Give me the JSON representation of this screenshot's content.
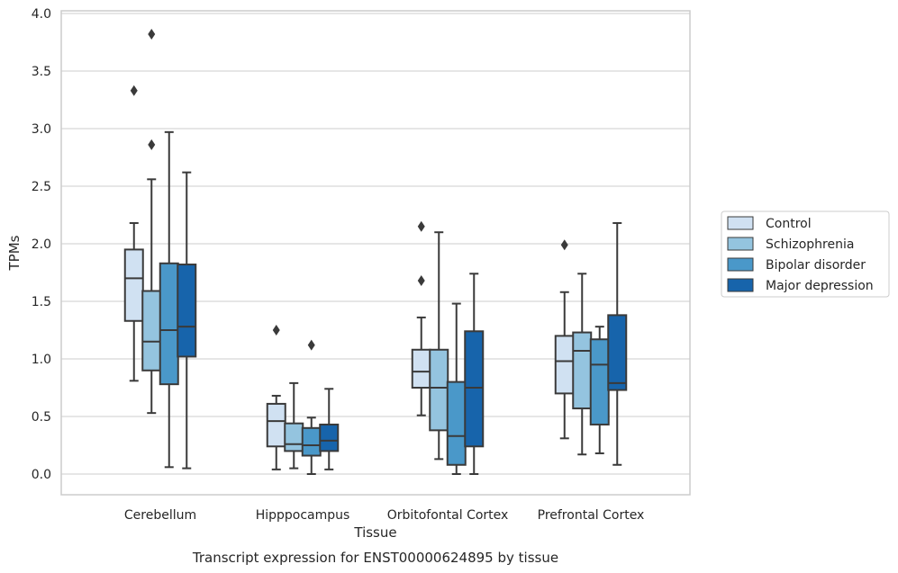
{
  "caption": "Transcript expression for ENST00000624895 by tissue",
  "chart_data": {
    "type": "box",
    "xlabel": "Tissue",
    "ylabel": "TPMs",
    "ylim": [
      -0.18,
      4.03
    ],
    "yticks": [
      "0.0",
      "0.5",
      "1.0",
      "1.5",
      "2.0",
      "2.5",
      "3.0",
      "3.5",
      "4.0"
    ],
    "grid": true,
    "legend_position": "right",
    "categories": [
      "Cerebellum",
      "Hipppocampus",
      "Orbitofontal Cortex",
      "Prefrontal Cortex"
    ],
    "series": [
      {
        "name": "Control",
        "color": "#d0e1f2",
        "boxes": [
          {
            "whisker_low": 0.81,
            "q1": 1.33,
            "median": 1.7,
            "q3": 1.95,
            "whisker_high": 2.18,
            "outliers": [
              3.33
            ]
          },
          {
            "whisker_low": 0.04,
            "q1": 0.24,
            "median": 0.46,
            "q3": 0.61,
            "whisker_high": 0.68,
            "outliers": [
              1.25
            ]
          },
          {
            "whisker_low": 0.51,
            "q1": 0.75,
            "median": 0.89,
            "q3": 1.08,
            "whisker_high": 1.36,
            "outliers": [
              1.68,
              2.15
            ]
          },
          {
            "whisker_low": 0.31,
            "q1": 0.7,
            "median": 0.98,
            "q3": 1.2,
            "whisker_high": 1.58,
            "outliers": [
              1.99
            ]
          }
        ]
      },
      {
        "name": "Schizophrenia",
        "color": "#94c4df",
        "boxes": [
          {
            "whisker_low": 0.53,
            "q1": 0.9,
            "median": 1.15,
            "q3": 1.59,
            "whisker_high": 2.56,
            "outliers": [
              2.86,
              3.82
            ]
          },
          {
            "whisker_low": 0.05,
            "q1": 0.2,
            "median": 0.26,
            "q3": 0.44,
            "whisker_high": 0.79,
            "outliers": []
          },
          {
            "whisker_low": 0.13,
            "q1": 0.38,
            "median": 0.75,
            "q3": 1.08,
            "whisker_high": 2.1,
            "outliers": []
          },
          {
            "whisker_low": 0.17,
            "q1": 0.57,
            "median": 1.07,
            "q3": 1.23,
            "whisker_high": 1.74,
            "outliers": []
          }
        ]
      },
      {
        "name": "Bipolar disorder",
        "color": "#4a98c9",
        "boxes": [
          {
            "whisker_low": 0.06,
            "q1": 0.78,
            "median": 1.25,
            "q3": 1.83,
            "whisker_high": 2.97,
            "outliers": []
          },
          {
            "whisker_low": 0.0,
            "q1": 0.16,
            "median": 0.25,
            "q3": 0.4,
            "whisker_high": 0.49,
            "outliers": [
              1.12
            ]
          },
          {
            "whisker_low": 0.0,
            "q1": 0.08,
            "median": 0.33,
            "q3": 0.8,
            "whisker_high": 1.48,
            "outliers": []
          },
          {
            "whisker_low": 0.18,
            "q1": 0.43,
            "median": 0.95,
            "q3": 1.17,
            "whisker_high": 1.28,
            "outliers": []
          }
        ]
      },
      {
        "name": "Major depression",
        "color": "#1764ab",
        "boxes": [
          {
            "whisker_low": 0.05,
            "q1": 1.02,
            "median": 1.28,
            "q3": 1.82,
            "whisker_high": 2.62,
            "outliers": []
          },
          {
            "whisker_low": 0.04,
            "q1": 0.2,
            "median": 0.29,
            "q3": 0.43,
            "whisker_high": 0.74,
            "outliers": []
          },
          {
            "whisker_low": 0.0,
            "q1": 0.24,
            "median": 0.75,
            "q3": 1.24,
            "whisker_high": 1.74,
            "outliers": []
          },
          {
            "whisker_low": 0.08,
            "q1": 0.73,
            "median": 0.79,
            "q3": 1.38,
            "whisker_high": 2.18,
            "outliers": []
          }
        ]
      }
    ]
  }
}
